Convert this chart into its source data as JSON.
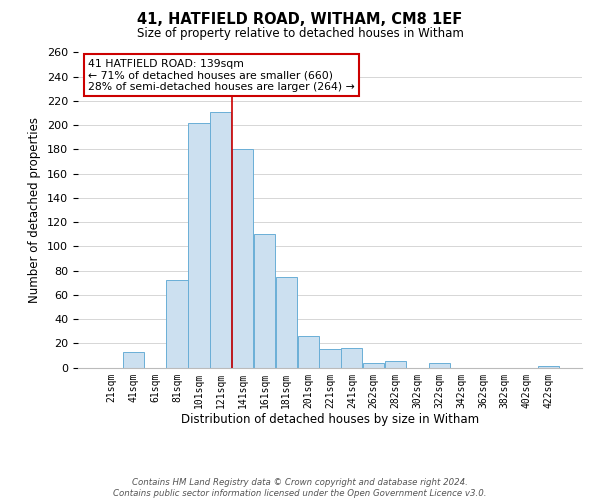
{
  "title_line1": "41, HATFIELD ROAD, WITHAM, CM8 1EF",
  "title_line2": "Size of property relative to detached houses in Witham",
  "xlabel": "Distribution of detached houses by size in Witham",
  "ylabel": "Number of detached properties",
  "bar_labels": [
    "21sqm",
    "41sqm",
    "61sqm",
    "81sqm",
    "101sqm",
    "121sqm",
    "141sqm",
    "161sqm",
    "181sqm",
    "201sqm",
    "221sqm",
    "241sqm",
    "262sqm",
    "282sqm",
    "302sqm",
    "322sqm",
    "342sqm",
    "362sqm",
    "382sqm",
    "402sqm",
    "422sqm"
  ],
  "bar_values": [
    0,
    13,
    0,
    72,
    202,
    211,
    180,
    110,
    75,
    26,
    15,
    16,
    4,
    5,
    0,
    4,
    0,
    0,
    0,
    0,
    1
  ],
  "bar_color": "#cce0f0",
  "bar_edgecolor": "#6aaed6",
  "background_color": "#ffffff",
  "grid_color": "#d0d0d0",
  "ylim": [
    0,
    260
  ],
  "yticks": [
    0,
    20,
    40,
    60,
    80,
    100,
    120,
    140,
    160,
    180,
    200,
    220,
    240,
    260
  ],
  "property_label": "41 HATFIELD ROAD: 139sqm",
  "annotation_line1": "← 71% of detached houses are smaller (660)",
  "annotation_line2": "28% of semi-detached houses are larger (264) →",
  "vline_color": "#cc0000",
  "vline_x_index": 5.5,
  "footer_line1": "Contains HM Land Registry data © Crown copyright and database right 2024.",
  "footer_line2": "Contains public sector information licensed under the Open Government Licence v3.0."
}
